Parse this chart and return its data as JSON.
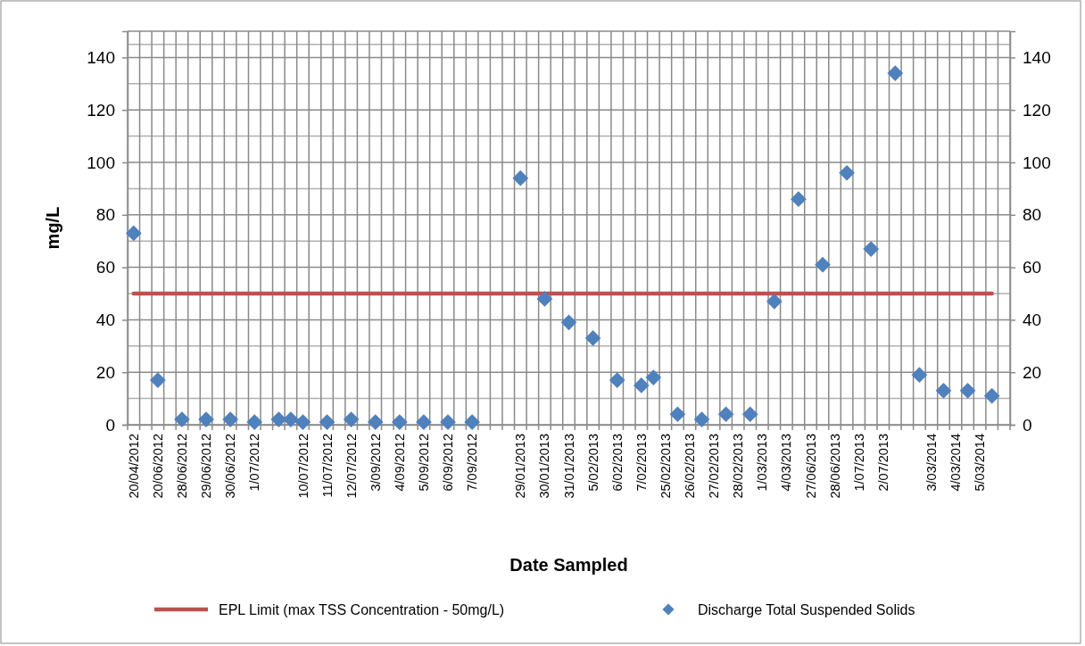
{
  "chart_data": {
    "type": "scatter",
    "xlabel": "Date Sampled",
    "ylabel": "mg/L",
    "categories": [
      "20/04/2012",
      null,
      "20/06/2012",
      null,
      "28/06/2012",
      null,
      "29/06/2012",
      null,
      "30/06/2012",
      null,
      "1/07/2012",
      null,
      null,
      null,
      "10/07/2012",
      null,
      "11/07/2012",
      null,
      "12/07/2012",
      null,
      "3/09/2012",
      null,
      "4/09/2012",
      null,
      "5/09/2012",
      null,
      "6/09/2012",
      null,
      "7/09/2012",
      null,
      null,
      null,
      "29/01/2013",
      null,
      "30/01/2013",
      null,
      "31/01/2013",
      null,
      "5/02/2013",
      null,
      "6/02/2013",
      null,
      "7/02/2013",
      null,
      "25/02/2013",
      null,
      "26/02/2013",
      null,
      "27/02/2013",
      null,
      "28/02/2013",
      null,
      "1/03/2013",
      null,
      "4/03/2013",
      null,
      "27/06/2013",
      null,
      "28/06/2013",
      null,
      "1/07/2013",
      null,
      "2/07/2013",
      null,
      null,
      null,
      "3/03/2014",
      null,
      "4/03/2014",
      null,
      "5/03/2014",
      null,
      null
    ],
    "series": [
      {
        "name": "Discharge Total Suspended Solids",
        "color": "#4f81bd",
        "values": [
          73,
          null,
          17,
          null,
          2,
          null,
          2,
          null,
          2,
          null,
          1,
          null,
          2,
          2,
          1,
          null,
          1,
          null,
          2,
          null,
          1,
          null,
          1,
          null,
          1,
          null,
          1,
          null,
          1,
          null,
          null,
          null,
          94,
          null,
          48,
          null,
          39,
          null,
          33,
          null,
          17,
          null,
          15,
          18,
          null,
          4,
          null,
          2,
          null,
          4,
          null,
          4,
          null,
          47,
          null,
          86,
          null,
          61,
          null,
          96,
          null,
          67,
          null,
          134,
          null,
          19,
          null,
          13,
          null,
          13,
          null,
          11,
          null
        ]
      }
    ],
    "ref_lines": [
      {
        "axis": "y",
        "value": 50,
        "label": "EPL Limit (max TSS Concentration - 50mg/L)",
        "color": "#c0504d"
      }
    ],
    "ylim": [
      0,
      150
    ],
    "yticks": [
      0,
      20,
      40,
      60,
      80,
      100,
      120,
      140
    ],
    "y2lim": [
      0,
      150
    ],
    "y2ticks": [
      0,
      20,
      40,
      60,
      80,
      100,
      120,
      140
    ],
    "grid": true,
    "legend": "bottom",
    "marker": "diamond"
  }
}
